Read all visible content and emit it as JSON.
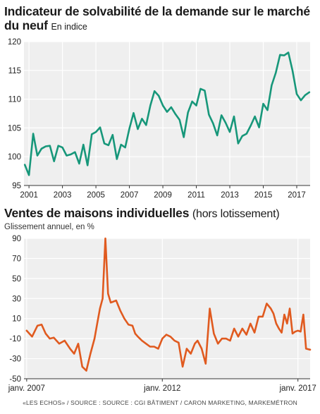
{
  "footer": "«LES ECHOS» / SOURCE : SOURCE : CGI BÂTIMENT / CARON MARKETING, MARKEMÉTRON",
  "chart_data": [
    {
      "type": "line",
      "title": "Indicateur de solvabilité de la demande sur le marché du neuf",
      "subtitle": "En indice",
      "color": "#17977a",
      "ylim": [
        95,
        120
      ],
      "yticks": [
        95,
        100,
        105,
        110,
        115,
        120
      ],
      "xlim": [
        2000.7,
        2017.8
      ],
      "xticks": [
        2001,
        2003,
        2005,
        2007,
        2009,
        2011,
        2013,
        2015,
        2017
      ],
      "grid": true,
      "x": [
        2000.75,
        2001,
        2001.25,
        2001.5,
        2001.75,
        2002,
        2002.25,
        2002.5,
        2002.75,
        2003,
        2003.25,
        2003.5,
        2003.75,
        2004,
        2004.25,
        2004.5,
        2004.75,
        2005,
        2005.25,
        2005.5,
        2005.75,
        2006,
        2006.25,
        2006.5,
        2006.75,
        2007,
        2007.25,
        2007.5,
        2007.75,
        2008,
        2008.25,
        2008.5,
        2008.75,
        2009,
        2009.25,
        2009.5,
        2009.75,
        2010,
        2010.25,
        2010.5,
        2010.75,
        2011,
        2011.25,
        2011.5,
        2011.75,
        2012,
        2012.25,
        2012.5,
        2012.75,
        2013,
        2013.25,
        2013.5,
        2013.75,
        2014,
        2014.25,
        2014.5,
        2014.75,
        2015,
        2015.25,
        2015.5,
        2015.75,
        2016,
        2016.25,
        2016.5,
        2016.75,
        2017,
        2017.25,
        2017.5,
        2017.75
      ],
      "y": [
        98.6,
        96.8,
        104,
        100.2,
        101.4,
        101.8,
        101.9,
        99.2,
        101.9,
        101.6,
        100.2,
        100.4,
        100.8,
        98.8,
        102.1,
        98.5,
        103.9,
        104.3,
        105.1,
        102.3,
        102.0,
        103.8,
        99.6,
        102.1,
        101.6,
        104.9,
        107.6,
        104.8,
        106.6,
        105.5,
        108.9,
        111.4,
        110.6,
        108.9,
        107.8,
        108.6,
        107.4,
        106.4,
        103.4,
        107.7,
        109.6,
        108.9,
        111.8,
        111.5,
        107.3,
        105.8,
        103.7,
        107.2,
        105.9,
        104.3,
        107.0,
        102.3,
        103.6,
        104.0,
        105.4,
        107.0,
        105.1,
        109.2,
        108.1,
        112.4,
        114.6,
        117.7,
        117.6,
        118.1,
        114.9,
        110.9,
        109.8,
        110.7,
        111.2
      ]
    },
    {
      "type": "line",
      "title": "Ventes de maisons individuelles",
      "title_suffix": "(hors lotissement)",
      "subtitle": "Glissement annuel, en %",
      "color": "#e05a1f",
      "ylim": [
        -50,
        90
      ],
      "yticks": [
        90,
        70,
        50,
        30,
        10,
        -10,
        -30,
        -50
      ],
      "xlim": [
        2006.9,
        2017.45
      ],
      "xticks": [
        2007,
        2012,
        2017
      ],
      "xtick_labels": [
        "janv. 2007",
        "janv. 2012",
        "janv. 2017"
      ],
      "grid": true,
      "x": [
        2007.0,
        2007.2,
        2007.4,
        2007.55,
        2007.7,
        2007.85,
        2008.0,
        2008.2,
        2008.4,
        2008.6,
        2008.75,
        2008.9,
        2009.05,
        2009.2,
        2009.35,
        2009.5,
        2009.6,
        2009.7,
        2009.8,
        2009.9,
        2010.0,
        2010.1,
        2010.2,
        2010.3,
        2010.45,
        2010.6,
        2010.75,
        2010.9,
        2011.0,
        2011.1,
        2011.25,
        2011.4,
        2011.55,
        2011.7,
        2011.85,
        2012.0,
        2012.15,
        2012.3,
        2012.45,
        2012.6,
        2012.75,
        2012.9,
        2013.05,
        2013.2,
        2013.3,
        2013.45,
        2013.6,
        2013.75,
        2013.9,
        2014.05,
        2014.2,
        2014.35,
        2014.5,
        2014.65,
        2014.8,
        2014.95,
        2015.1,
        2015.25,
        2015.4,
        2015.55,
        2015.7,
        2015.85,
        2016.0,
        2016.1,
        2016.2,
        2016.3,
        2016.4,
        2016.5,
        2016.6,
        2016.7,
        2016.8,
        2016.9,
        2017.0,
        2017.1,
        2017.2,
        2017.3,
        2017.45
      ],
      "y": [
        -2,
        -8,
        3,
        4,
        -5,
        -10,
        -9,
        -15,
        -12,
        -20,
        -25,
        -15,
        -38,
        -42,
        -25,
        -10,
        5,
        20,
        30,
        90,
        35,
        26,
        27,
        28,
        18,
        10,
        4,
        3,
        -5,
        -8,
        -12,
        -15,
        -18,
        -18,
        -20,
        -10,
        -6,
        -8,
        -12,
        -14,
        -38,
        -20,
        -25,
        -15,
        -12,
        -20,
        -35,
        20,
        -5,
        -15,
        -10,
        -10,
        -12,
        0,
        -8,
        0,
        -6,
        5,
        -4,
        12,
        12,
        25,
        20,
        15,
        5,
        0,
        -4,
        14,
        5,
        20,
        -5,
        -3,
        -2,
        -3,
        14,
        -20,
        -21
      ]
    }
  ]
}
